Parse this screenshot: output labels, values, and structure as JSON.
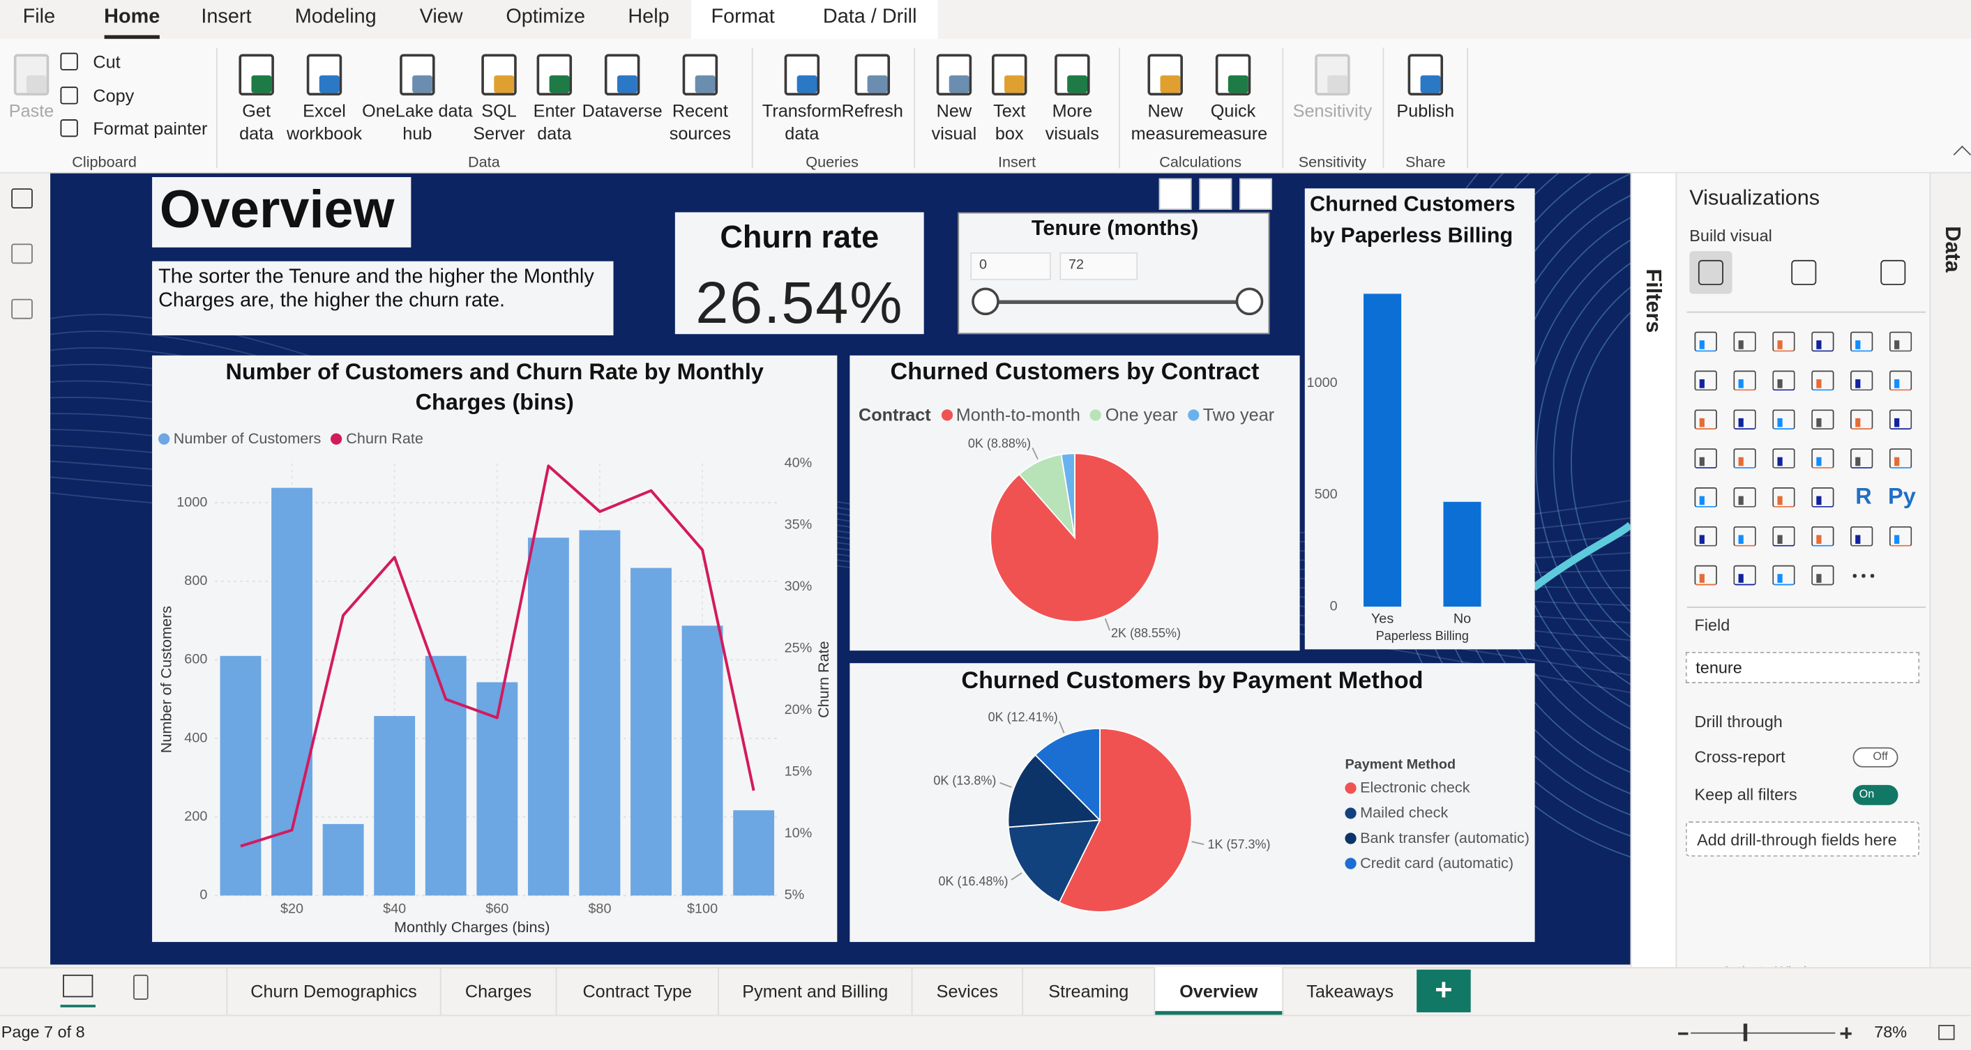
{
  "menu": [
    "File",
    "Home",
    "Insert",
    "Modeling",
    "View",
    "Optimize",
    "Help",
    "Format",
    "Data / Drill"
  ],
  "ribbon": [
    {
      "group": "Clipboard",
      "buttons": [
        "Paste",
        "Cut",
        "Copy",
        "Format painter"
      ]
    },
    {
      "group": "Data",
      "buttons": [
        "Get data",
        "Excel workbook",
        "OneLake data hub",
        "SQL Server",
        "Enter data",
        "Dataverse",
        "Recent sources"
      ]
    },
    {
      "group": "Queries",
      "buttons": [
        "Transform data",
        "Refresh"
      ]
    },
    {
      "group": "Insert",
      "buttons": [
        "New visual",
        "Text box",
        "More visuals"
      ]
    },
    {
      "group": "Calculations",
      "buttons": [
        "New measure",
        "Quick measure"
      ]
    },
    {
      "group": "Sensitivity",
      "buttons": [
        "Sensitivity"
      ]
    },
    {
      "group": "Share",
      "buttons": [
        "Publish"
      ]
    }
  ],
  "report": {
    "title": "Overview",
    "note": "The sorter  the Tenure and the higher the Monthly Charges are, the higher the churn rate.",
    "card": {
      "label": "Churn rate",
      "value": "26.54%"
    },
    "slicer": {
      "title": "Tenure (months)",
      "min": 0,
      "max": 72
    }
  },
  "chart_data": [
    {
      "type": "combo",
      "title": "Number of Customers and Churn Rate by Monthly Charges (bins)",
      "x_label": "Monthly Charges (bins)",
      "y_label": "Number of Customers",
      "y2_label": "Churn Rate",
      "x": [
        10,
        20,
        30,
        40,
        50,
        60,
        70,
        80,
        90,
        100,
        110
      ],
      "series": [
        {
          "name": "Number of Customers",
          "type": "bar",
          "color": "#6ca6e3",
          "values": [
            610,
            1038,
            182,
            457,
            610,
            543,
            911,
            930,
            834,
            687,
            217
          ]
        },
        {
          "name": "Churn Rate",
          "type": "line",
          "axis": "y2",
          "color": "#d31a5c",
          "values": [
            9.0,
            10.3,
            27.7,
            32.4,
            20.9,
            19.4,
            39.8,
            36.1,
            37.8,
            33.0,
            13.5
          ]
        }
      ],
      "xlim": [
        5,
        115
      ],
      "xticks": [
        {
          "value": 20,
          "label": "$20"
        },
        {
          "value": 40,
          "label": "$40"
        },
        {
          "value": 60,
          "label": "$60"
        },
        {
          "value": 80,
          "label": "$80"
        },
        {
          "value": 100,
          "label": "$100"
        }
      ],
      "ylim": [
        0,
        1100
      ],
      "yticks": [
        0,
        200,
        400,
        600,
        800,
        1000
      ],
      "y2lim": [
        5,
        40
      ],
      "y2ticks": [
        {
          "value": 5,
          "label": "5%"
        },
        {
          "value": 10,
          "label": "10%"
        },
        {
          "value": 15,
          "label": "15%"
        },
        {
          "value": 20,
          "label": "20%"
        },
        {
          "value": 25,
          "label": "25%"
        },
        {
          "value": 30,
          "label": "30%"
        },
        {
          "value": 35,
          "label": "35%"
        },
        {
          "value": 40,
          "label": "40%"
        }
      ],
      "grid": true,
      "legend": "top-left"
    },
    {
      "type": "pie",
      "title": "Churned Customers by Contract",
      "legend_title": "Contract",
      "categories": [
        "Month-to-month",
        "One year",
        "Two year"
      ],
      "values": [
        88.55,
        8.88,
        2.57
      ],
      "value_labels": [
        "2K (88.55%)",
        "0K (8.88%)",
        null
      ],
      "colors": [
        "#f05252",
        "#b8e2b8",
        "#6ab2ee"
      ],
      "legend": "top"
    },
    {
      "type": "bar",
      "title": "Churned Customers by Paperless Billing",
      "x_label": "Paperless Billing",
      "categories": [
        "Yes",
        "No"
      ],
      "values": [
        1400,
        469
      ],
      "color": "#0b6fd6",
      "ylim": [
        0,
        1450
      ],
      "yticks": [
        0,
        500,
        1000
      ],
      "grid": false
    },
    {
      "type": "pie",
      "title": "Churned Customers by Payment Method",
      "legend_title": "Payment Method",
      "categories": [
        "Electronic check",
        "Mailed check",
        "Bank transfer (automatic)",
        "Credit card (automatic)"
      ],
      "values": [
        57.3,
        16.48,
        13.8,
        12.41
      ],
      "value_labels": [
        "1K (57.3%)",
        "0K (16.48%)",
        "0K (13.8%)",
        "0K (12.41%)"
      ],
      "colors": [
        "#f05252",
        "#12427e",
        "#0d3468",
        "#1b6fd2"
      ],
      "legend": "right"
    }
  ],
  "filters_pane": "Filters",
  "visualizations": {
    "title": "Visualizations",
    "build": "Build visual",
    "icon_texts": [
      "R",
      "Py"
    ],
    "field_label": "Field",
    "field": "tenure",
    "drill_title": "Drill through",
    "cross_report": "Cross-report",
    "cross_state": "Off",
    "keep_filters": "Keep all filters",
    "keep_state": "On",
    "drop_zone": "Add drill-through fields here"
  },
  "data_pane": "Data",
  "watermark": {
    "title": "Activate Windows",
    "text": "Go to Settings to activate Windows."
  },
  "pages": [
    "Churn Demographics",
    "Charges",
    "Contract Type",
    "Pyment and Billing",
    "Sevices",
    "Streaming",
    "Overview",
    "Takeaways"
  ],
  "add_page": "+",
  "status": {
    "page": "Page 7 of 8",
    "zoom": "78%"
  }
}
